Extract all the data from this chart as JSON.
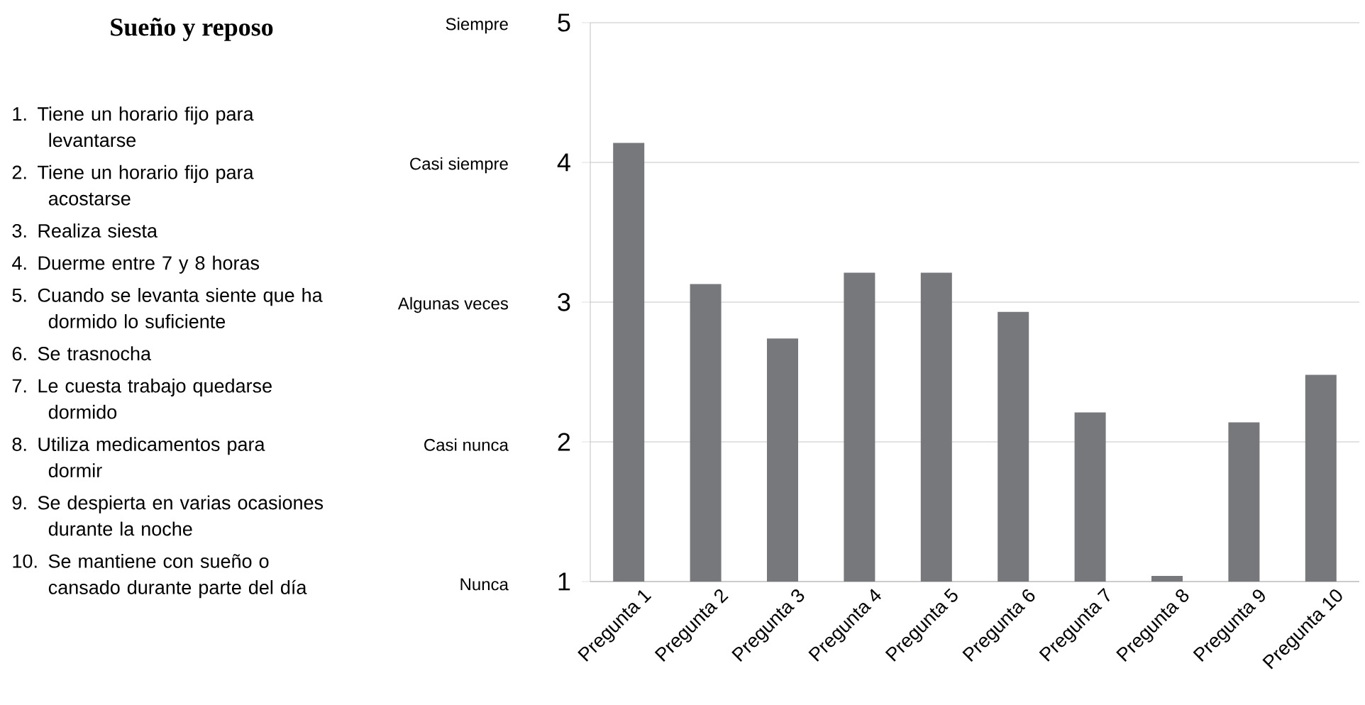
{
  "chart_data": {
    "type": "bar",
    "title": "Sueño y reposo",
    "annotations": [
      "1. Tiene un horario fijo para levantarse",
      "2. Tiene un horario fijo para acostarse",
      "3. Realiza siesta",
      "4. Duerme entre 7 y 8 horas",
      "5. Cuando se levanta siente que ha dormido lo suficiente",
      "6. Se trasnocha",
      "7. Le cuesta trabajo quedarse dormido",
      "8. Utiliza medicamentos para dormir",
      "9. Se despierta en varias ocasiones durante la noche",
      "10. Se mantiene con sueño o cansado durante parte del día",
      "Nunca",
      "Casi nunca",
      "Algunas veces",
      "Casi siempre",
      "Siempre"
    ],
    "categories": [
      "Pregunta 1",
      "Pregunta 2",
      "Pregunta 3",
      "Pregunta 4",
      "Pregunta 5",
      "Pregunta 6",
      "Pregunta 7",
      "Pregunta 8",
      "Pregunta 9",
      "Pregunta 10"
    ],
    "values": [
      4.14,
      3.13,
      2.74,
      3.21,
      3.21,
      2.93,
      2.21,
      1.04,
      2.14,
      2.48
    ],
    "color": "#77787b",
    "ylim": [
      1,
      5
    ],
    "yticks": [
      1,
      2,
      3,
      4,
      5
    ],
    "grid": "y",
    "legend": false
  }
}
